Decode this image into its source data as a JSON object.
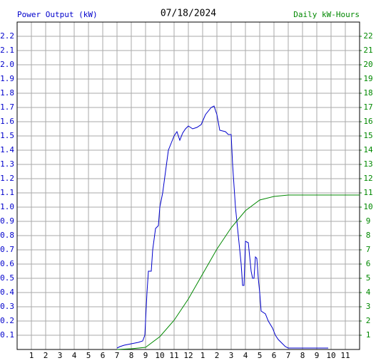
{
  "chart_data": {
    "type": "line",
    "title": "07/18/2024",
    "ylabel": "Power Output (kW)",
    "y2label": "Daily kW-Hours",
    "xlim": [
      0,
      24
    ],
    "xticks": [
      1,
      2,
      3,
      4,
      5,
      6,
      7,
      8,
      9,
      10,
      11,
      12,
      {
        "value": 13,
        "label": "1"
      },
      {
        "value": 14,
        "label": "2"
      },
      {
        "value": 15,
        "label": "3"
      },
      {
        "value": 16,
        "label": "4"
      },
      {
        "value": 17,
        "label": "5"
      },
      {
        "value": 18,
        "label": "6"
      },
      {
        "value": 19,
        "label": "7"
      },
      {
        "value": 20,
        "label": "8"
      },
      {
        "value": 21,
        "label": "9"
      },
      {
        "value": 22,
        "label": "10"
      },
      {
        "value": 23,
        "label": "11"
      }
    ],
    "ylim": [
      0,
      2.3
    ],
    "yticks": [
      0.1,
      0.2,
      0.3,
      0.4,
      0.5,
      0.6,
      0.7,
      0.8,
      0.9,
      {
        "value": 1,
        "label": "1.0"
      },
      1.1,
      1.2,
      1.3,
      1.4,
      1.5,
      1.6,
      1.7,
      1.8,
      1.9,
      {
        "value": 2,
        "label": "2.0"
      },
      2.1,
      2.2
    ],
    "y2lim": [
      0,
      23
    ],
    "y2ticks": [
      1,
      2,
      3,
      4,
      5,
      6,
      7,
      8,
      9,
      10,
      11,
      12,
      13,
      14,
      15,
      16,
      17,
      18,
      19,
      20,
      21,
      22
    ],
    "grid": true,
    "series": [
      {
        "name": "Power Output (kW)",
        "color": "#0000cc",
        "x": [
          7.0,
          7.2,
          7.5,
          8.0,
          8.5,
          8.8,
          8.95,
          9.1,
          9.2,
          9.4,
          9.5,
          9.7,
          9.9,
          10.0,
          10.2,
          10.4,
          10.6,
          10.8,
          11.0,
          11.2,
          11.4,
          11.6,
          11.8,
          12.0,
          12.3,
          12.6,
          12.9,
          13.2,
          13.6,
          13.8,
          14.0,
          14.2,
          14.6,
          14.8,
          15.0,
          15.1,
          15.3,
          15.5,
          15.7,
          15.8,
          15.9,
          16.0,
          16.2,
          16.4,
          16.5,
          16.6,
          16.7,
          16.8,
          16.9,
          17.0,
          17.1,
          17.4,
          17.6,
          17.9,
          18.1,
          18.3,
          18.6,
          18.8,
          19.0,
          20.0,
          21.0,
          21.8
        ],
        "values": [
          0.01,
          0.02,
          0.03,
          0.04,
          0.05,
          0.06,
          0.1,
          0.4,
          0.55,
          0.55,
          0.7,
          0.85,
          0.87,
          1.0,
          1.1,
          1.25,
          1.4,
          1.45,
          1.5,
          1.53,
          1.47,
          1.52,
          1.55,
          1.57,
          1.55,
          1.56,
          1.58,
          1.65,
          1.7,
          1.71,
          1.65,
          1.54,
          1.53,
          1.51,
          1.51,
          1.3,
          1.0,
          0.8,
          0.6,
          0.45,
          0.45,
          0.76,
          0.75,
          0.55,
          0.5,
          0.5,
          0.65,
          0.64,
          0.5,
          0.4,
          0.27,
          0.25,
          0.2,
          0.15,
          0.1,
          0.07,
          0.04,
          0.02,
          0.01,
          0.01,
          0.01,
          0.01
        ]
      },
      {
        "name": "Daily kW-Hours",
        "color": "#008800",
        "axis": "y2",
        "x": [
          7,
          8,
          9,
          10,
          11,
          12,
          13,
          14,
          15,
          16,
          17,
          18,
          19,
          20,
          22,
          24
        ],
        "values": [
          0,
          0.05,
          0.15,
          0.9,
          2.05,
          3.55,
          5.3,
          7.05,
          8.55,
          9.75,
          10.5,
          10.75,
          10.85,
          10.85,
          10.85,
          10.85
        ]
      }
    ]
  }
}
